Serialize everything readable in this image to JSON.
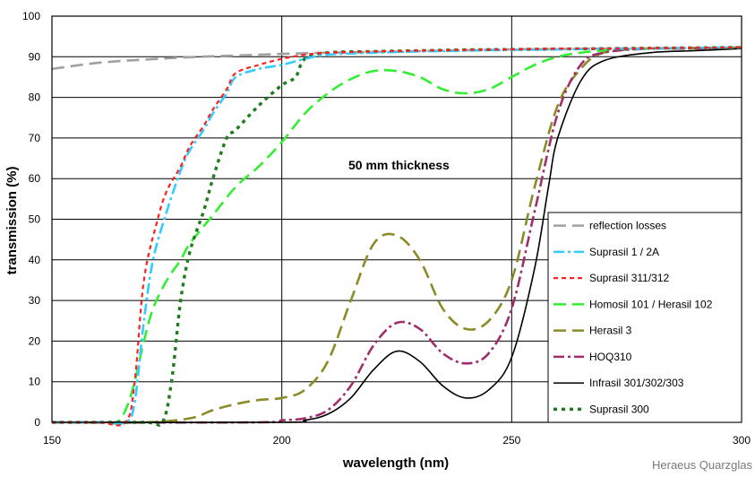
{
  "chart_data": {
    "type": "line",
    "title": "",
    "annotation": "50 mm thickness",
    "xlabel": "wavelength (nm)",
    "ylabel": "transmission (%)",
    "xlim": [
      150,
      300
    ],
    "ylim": [
      0,
      100
    ],
    "xticks": [
      150,
      200,
      250,
      300
    ],
    "yticks": [
      0,
      10,
      20,
      30,
      40,
      50,
      60,
      70,
      80,
      90,
      100
    ],
    "grid": true,
    "legend_position": "right",
    "credit": "Heraeus Quarzglas",
    "series": [
      {
        "name": "reflection losses",
        "color": "#a0a0a0",
        "style": "long-dash",
        "x": [
          150,
          160,
          170,
          180,
          190,
          200,
          210,
          220,
          230,
          240,
          250,
          260,
          270,
          280,
          290,
          300
        ],
        "y": [
          87,
          88.5,
          89.3,
          89.9,
          90.3,
          90.7,
          91.0,
          91.2,
          91.4,
          91.6,
          91.8,
          91.9,
          92.0,
          92.1,
          92.2,
          92.3
        ]
      },
      {
        "name": "Suprasil 1 / 2A",
        "color": "#33ccff",
        "style": "dash-dot",
        "x": [
          150,
          160,
          166,
          168,
          170,
          172,
          175,
          178,
          180,
          183,
          185,
          188,
          190,
          195,
          200,
          205,
          210,
          220,
          230,
          240,
          250,
          260,
          270,
          280,
          290,
          300
        ],
        "y": [
          0,
          0,
          0,
          5,
          25,
          40,
          52,
          62,
          67,
          72,
          76,
          81,
          85,
          87,
          88,
          89.5,
          90.5,
          91,
          91.3,
          91.5,
          91.7,
          91.8,
          92,
          92,
          92.2,
          92.3
        ]
      },
      {
        "name": "Suprasil 311/312",
        "color": "#ff2020",
        "style": "short-dash",
        "x": [
          150,
          160,
          166,
          168,
          170,
          173,
          175,
          178,
          180,
          183,
          185,
          188,
          190,
          195,
          200,
          205,
          210,
          220,
          230,
          240,
          250,
          260,
          270,
          280,
          290,
          300
        ],
        "y": [
          0,
          0,
          0,
          10,
          35,
          50,
          57,
          63,
          68,
          73,
          77,
          82,
          86,
          88,
          89.5,
          90.5,
          91,
          91.3,
          91.5,
          91.7,
          91.8,
          92,
          92,
          92.1,
          92.2,
          92.3
        ]
      },
      {
        "name": "Homosil 101 / Herasil 102",
        "color": "#33ee33",
        "style": "long-dash",
        "x": [
          150,
          160,
          164,
          166,
          168,
          170,
          172,
          175,
          178,
          180,
          185,
          190,
          195,
          200,
          205,
          210,
          215,
          220,
          225,
          230,
          235,
          240,
          245,
          250,
          255,
          260,
          265,
          270,
          280,
          290,
          300
        ],
        "y": [
          0,
          0,
          0,
          3,
          10,
          20,
          28,
          35,
          40,
          44,
          51,
          58,
          63,
          69,
          76,
          81,
          84.5,
          86.5,
          86.5,
          85,
          82,
          81,
          82,
          85,
          88,
          90,
          91,
          91.5,
          92,
          92,
          92.2
        ]
      },
      {
        "name": "Herasil 3",
        "color": "#8b8b28",
        "style": "long-dash",
        "x": [
          150,
          170,
          180,
          185,
          190,
          195,
          200,
          205,
          210,
          215,
          220,
          225,
          230,
          235,
          240,
          245,
          250,
          255,
          260,
          265,
          270,
          280,
          290,
          300
        ],
        "y": [
          0,
          0,
          1,
          3,
          4.5,
          5.5,
          6,
          8,
          15,
          30,
          44,
          46,
          40,
          28,
          23,
          25,
          35,
          58,
          78,
          87,
          91,
          92,
          92.1,
          92.3
        ]
      },
      {
        "name": "HOQ310",
        "color": "#9e2f6a",
        "style": "dash-dot",
        "x": [
          150,
          195,
          200,
          205,
          210,
          215,
          220,
          225,
          230,
          235,
          240,
          245,
          250,
          255,
          260,
          265,
          270,
          280,
          290,
          300
        ],
        "y": [
          0,
          0,
          0.5,
          1,
          3,
          9,
          19,
          24.5,
          23,
          17,
          14.5,
          17,
          28,
          52,
          76,
          88,
          91,
          92,
          92,
          92.2
        ]
      },
      {
        "name": "Infrasil 301/302/303",
        "color": "#000000",
        "style": "solid",
        "x": [
          150,
          200,
          205,
          210,
          215,
          220,
          225,
          230,
          235,
          240,
          245,
          250,
          255,
          258,
          260,
          265,
          270,
          280,
          290,
          300
        ],
        "y": [
          0,
          0,
          0.5,
          2,
          6,
          13,
          17.5,
          15,
          9,
          6,
          8,
          16,
          38,
          58,
          70,
          84,
          89,
          91,
          91.5,
          92
        ]
      },
      {
        "name": "Suprasil 300",
        "color": "#1e7d1e",
        "style": "dot",
        "x": [
          150,
          170,
          174,
          176,
          178,
          180,
          183,
          185,
          188,
          190,
          195,
          200,
          203,
          205,
          210,
          220,
          230,
          240,
          250,
          260,
          270,
          280,
          290,
          300
        ],
        "y": [
          0,
          0,
          0,
          10,
          30,
          42,
          52,
          60,
          70,
          72,
          78,
          83,
          85,
          89.5,
          91,
          91.3,
          91.5,
          91.7,
          91.8,
          91.9,
          92,
          92.1,
          92.2,
          92.3
        ]
      }
    ]
  }
}
